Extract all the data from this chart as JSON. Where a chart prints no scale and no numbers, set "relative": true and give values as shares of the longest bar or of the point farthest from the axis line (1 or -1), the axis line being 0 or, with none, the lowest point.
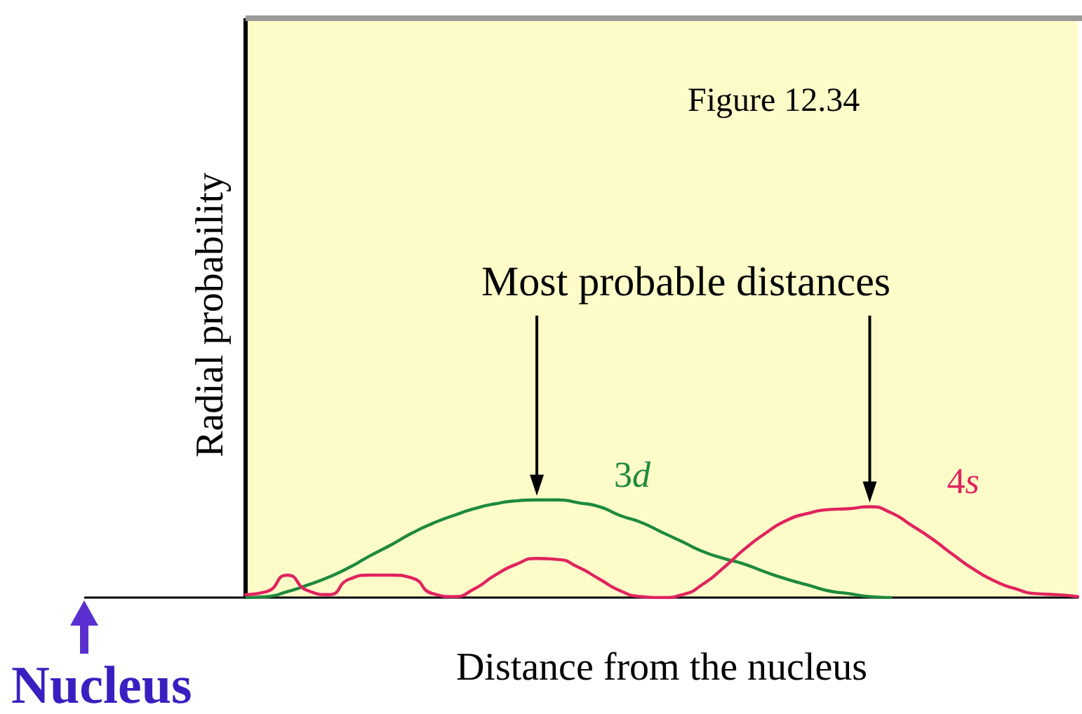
{
  "chart_data": {
    "type": "line",
    "relative": true,
    "xlabel": "Distance from the nucleus",
    "ylabel": "Radial probability",
    "annotations": [
      "Figure 12.34",
      "Most probable distances",
      "Nucleus"
    ],
    "categories": [
      null,
      null,
      null,
      null,
      null,
      null,
      null,
      null,
      null,
      null,
      null,
      null,
      null,
      null,
      null,
      null,
      null,
      null,
      null,
      null,
      null,
      null,
      null,
      null,
      null,
      null,
      null,
      null,
      null,
      null,
      null,
      null,
      null,
      null,
      null,
      null,
      null,
      null,
      null,
      null,
      null
    ],
    "series": [
      {
        "name": "3d",
        "color": "#1e8a3c",
        "values": [
          0,
          0.01,
          0.06,
          0.13,
          0.21,
          0.31,
          0.43,
          0.54,
          0.66,
          0.76,
          0.84,
          0.91,
          0.96,
          0.99,
          1,
          1,
          0.97,
          0.93,
          0.84,
          0.77,
          0.67,
          0.57,
          0.47,
          0.4,
          0.34,
          0.26,
          0.19,
          0.13,
          0.07,
          0.04,
          0.01,
          0,
          null,
          null,
          null,
          null,
          null,
          null,
          null,
          null,
          null
        ]
      },
      {
        "name": "4s",
        "color": "#e0245e",
        "values": [
          0.03,
          0.06,
          0.23,
          0.07,
          0.03,
          0.19,
          0.23,
          0.23,
          0.2,
          0.04,
          0.01,
          0.09,
          0.23,
          0.34,
          0.4,
          0.39,
          0.31,
          0.19,
          0.07,
          0.01,
          0,
          0.03,
          0.14,
          0.31,
          0.5,
          0.66,
          0.79,
          0.86,
          0.9,
          0.91,
          0.93,
          0.87,
          0.74,
          0.6,
          0.44,
          0.29,
          0.17,
          0.09,
          0.04,
          0.03,
          0.01
        ]
      }
    ],
    "grid": false,
    "legend": false,
    "marker": "none",
    "line_style": "solid"
  }
}
